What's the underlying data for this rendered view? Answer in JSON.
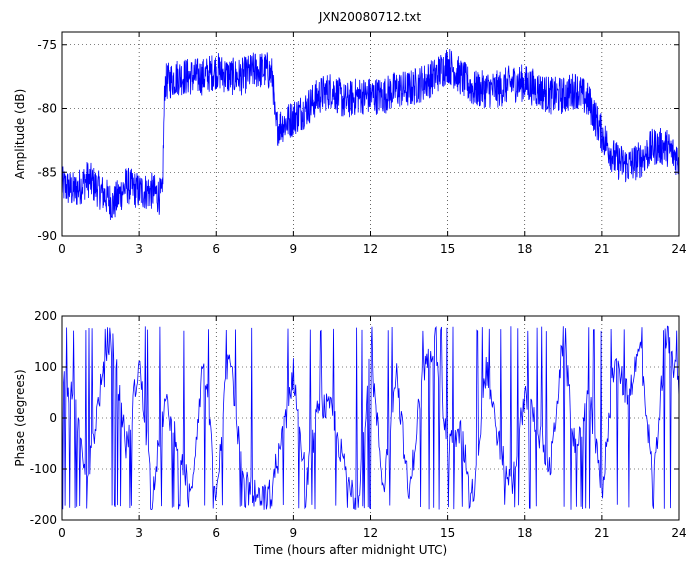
{
  "figure": {
    "title": "JXN20080712.txt"
  },
  "chart_data": [
    {
      "type": "line",
      "title": "JXN20080712.txt",
      "xlabel": "",
      "ylabel": "Amplitude (dB)",
      "xlim": [
        0,
        24
      ],
      "ylim": [
        -90,
        -74
      ],
      "xticks": [
        0,
        3,
        6,
        9,
        12,
        15,
        18,
        21,
        24
      ],
      "yticks": [
        -90,
        -85,
        -80,
        -75
      ],
      "grid": true,
      "color": "#0000ff",
      "series": [
        {
          "x": [
            0,
            0.5,
            1,
            1.5,
            2,
            2.5,
            3,
            3.5,
            3.9,
            4.0,
            4.5,
            5,
            5.5,
            6,
            6.5,
            7,
            7.5,
            8,
            8.2,
            8.3,
            8.8,
            9.5,
            10,
            10.5,
            11,
            11.5,
            12,
            12.5,
            13,
            13.5,
            14,
            14.5,
            15,
            15.5,
            16,
            16.5,
            17,
            17.5,
            18,
            18.5,
            19,
            19.5,
            20,
            20.5,
            21,
            21.5,
            22,
            22.5,
            23,
            23.5,
            24
          ],
          "y": [
            -86,
            -86.5,
            -85.5,
            -86.5,
            -87.5,
            -86,
            -86.5,
            -86.5,
            -87,
            -78,
            -77.5,
            -77.5,
            -77.5,
            -77,
            -77.5,
            -77.5,
            -77,
            -77,
            -77.5,
            -81.5,
            -81,
            -80,
            -79,
            -78.5,
            -79.5,
            -79,
            -79,
            -79,
            -78.5,
            -78.5,
            -78,
            -77.5,
            -76.5,
            -77.5,
            -78.5,
            -78.5,
            -78.5,
            -78,
            -78,
            -78.5,
            -79,
            -79,
            -78.5,
            -79.5,
            -82,
            -84,
            -84.5,
            -84,
            -83,
            -83,
            -84
          ]
        }
      ]
    },
    {
      "type": "line",
      "title": "",
      "xlabel": "Time (hours after midnight UTC)",
      "ylabel": "Phase (degrees)",
      "xlim": [
        0,
        24
      ],
      "ylim": [
        -200,
        200
      ],
      "xticks": [
        0,
        3,
        6,
        9,
        12,
        15,
        18,
        21,
        24
      ],
      "yticks": [
        -200,
        -100,
        0,
        100,
        200
      ],
      "grid": true,
      "color": "#0000ff",
      "series": [
        {
          "x": [
            0,
            0.5,
            1,
            1.5,
            2,
            2.5,
            3,
            3.5,
            4,
            4.5,
            5,
            5.5,
            6,
            6.5,
            7,
            7.5,
            8,
            8.5,
            9,
            9.5,
            10,
            10.5,
            11,
            11.5,
            12,
            12.5,
            13,
            13.5,
            14,
            14.5,
            15,
            15.5,
            16,
            16.5,
            17,
            17.5,
            18,
            18.5,
            19,
            19.5,
            20,
            20.5,
            21,
            21.5,
            22,
            22.5,
            23,
            23.5,
            24
          ],
          "y": [
            100,
            20,
            -120,
            60,
            150,
            -60,
            110,
            -150,
            30,
            -40,
            -160,
            120,
            -170,
            150,
            -110,
            -150,
            -160,
            -60,
            90,
            -130,
            30,
            10,
            -100,
            -170,
            130,
            -140,
            100,
            -160,
            80,
            160,
            -60,
            -30,
            -150,
            100,
            -50,
            -140,
            50,
            -20,
            -100,
            160,
            -80,
            50,
            -150,
            120,
            40,
            140,
            -130,
            170,
            60
          ]
        }
      ]
    }
  ]
}
